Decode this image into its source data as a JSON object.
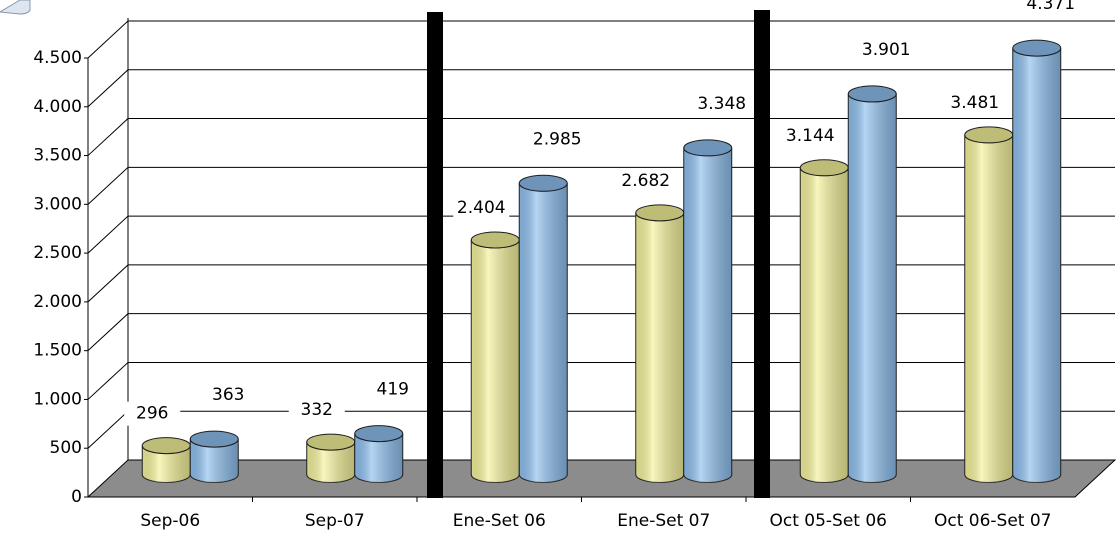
{
  "chart_data": {
    "type": "bar3d",
    "categories": [
      "Sep-06",
      "Sep-07",
      "Ene-Set 06",
      "Ene-Set 07",
      "Oct 05-Set 06",
      "Oct 06-Set 07"
    ],
    "series": [
      {
        "color": "#f4f29a",
        "values": [
          296,
          332,
          2404,
          2682,
          3144,
          3481
        ],
        "value_labels": [
          "296",
          "332",
          "2.404",
          "2.682",
          "3.144",
          "3.481"
        ]
      },
      {
        "color": "#8ebfee",
        "values": [
          363,
          419,
          2985,
          3348,
          3901,
          4371
        ],
        "value_labels": [
          "363",
          "419",
          "2.985",
          "3.348",
          "3.901",
          "4.371"
        ]
      }
    ],
    "ylim": [
      0,
      4500
    ],
    "yticks": [
      0,
      500,
      {
        "value": 1000,
        "label": "1.000"
      },
      {
        "value": 1500,
        "label": "1.500"
      },
      {
        "value": 2000,
        "label": "2.000"
      },
      {
        "value": 2500,
        "label": "2.500"
      },
      {
        "value": 3000,
        "label": "3.000"
      },
      {
        "value": 3500,
        "label": "3.500"
      },
      {
        "value": 4000,
        "label": "4.000"
      },
      {
        "value": 4500,
        "label": "4.500"
      }
    ],
    "grid": true
  }
}
